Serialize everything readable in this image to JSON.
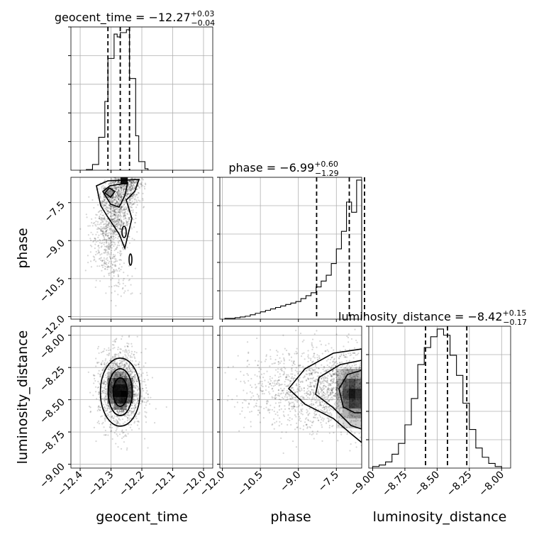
{
  "chart_data": {
    "type": "corner",
    "parameters": [
      {
        "name": "geocent_time",
        "label": "geocent_time",
        "range": [
          -12.43,
          -11.97
        ],
        "ticks": [
          -12.4,
          -12.3,
          -12.2,
          -12.1,
          -12.0
        ],
        "tick_labels": [
          "−12.4",
          "−12.3",
          "−12.2",
          "−12.1",
          "−12.0"
        ],
        "median": -12.27,
        "quantiles": [
          -12.31,
          -12.27,
          -12.24
        ],
        "title_main": "geocent_time = −12.27",
        "title_plus": "+0.03",
        "title_minus": "−0.04",
        "hist_bins": [
          -12.38,
          -12.36,
          -12.34,
          -12.32,
          -12.31,
          -12.29,
          -12.28,
          -12.27,
          -12.25,
          -12.24,
          -12.22,
          -12.21,
          -12.19,
          -12.18
        ],
        "hist_counts": [
          0.5,
          4,
          23,
          48,
          78,
          95,
          93,
          96,
          98,
          64,
          24,
          6,
          1
        ]
      },
      {
        "name": "phase",
        "label": "phase",
        "range": [
          -12.1,
          -6.5
        ],
        "ticks": [
          -12.0,
          -10.5,
          -9.0,
          -7.5
        ],
        "tick_labels": [
          "−12.0",
          "−10.5",
          "−9.0",
          "−7.5"
        ],
        "median": -6.99,
        "quantiles": [
          -8.28,
          -6.99,
          -6.39
        ],
        "title_main": "phase = −6.99",
        "title_plus": "+0.60",
        "title_minus": "−1.29",
        "hist_bins": [
          -11.9,
          -11.7,
          -11.5,
          -11.3,
          -11.1,
          -10.9,
          -10.7,
          -10.5,
          -10.3,
          -10.1,
          -9.9,
          -9.7,
          -9.5,
          -9.3,
          -9.1,
          -8.9,
          -8.7,
          -8.5,
          -8.3,
          -8.1,
          -7.9,
          -7.7,
          -7.5,
          -7.3,
          -7.1,
          -6.9,
          -6.7,
          -6.5
        ],
        "hist_counts": [
          0.5,
          0.5,
          1,
          1.5,
          2,
          3,
          4,
          5,
          6,
          7,
          8,
          9,
          10,
          11,
          12,
          14,
          16,
          18,
          22,
          26,
          30,
          38,
          48,
          60,
          80,
          73,
          95
        ]
      },
      {
        "name": "luminosity_distance",
        "label": "luminosity_distance",
        "range": [
          -9.03,
          -7.93
        ],
        "ticks": [
          -9.0,
          -8.75,
          -8.5,
          -8.25,
          -8.0
        ],
        "tick_labels": [
          "−9.00",
          "−8.75",
          "−8.50",
          "−8.25",
          "−8.00"
        ],
        "median": -8.42,
        "quantiles": [
          -8.59,
          -8.42,
          -8.27
        ],
        "title_main": "luminosity_distance = −8.42",
        "title_plus": "+0.15",
        "title_minus": "−0.17",
        "hist_bins": [
          -9.0,
          -8.95,
          -8.9,
          -8.85,
          -8.8,
          -8.75,
          -8.7,
          -8.65,
          -8.6,
          -8.55,
          -8.5,
          -8.45,
          -8.4,
          -8.35,
          -8.3,
          -8.25,
          -8.2,
          -8.15,
          -8.1,
          -8.05,
          -8.0
        ],
        "hist_counts": [
          1,
          2,
          4,
          9,
          16,
          28,
          45,
          67,
          78,
          85,
          90,
          86,
          73,
          60,
          42,
          25,
          13,
          7,
          3,
          1
        ]
      }
    ],
    "contour_levels": [
      0.39,
      0.86,
      0.99
    ],
    "grid": true
  }
}
